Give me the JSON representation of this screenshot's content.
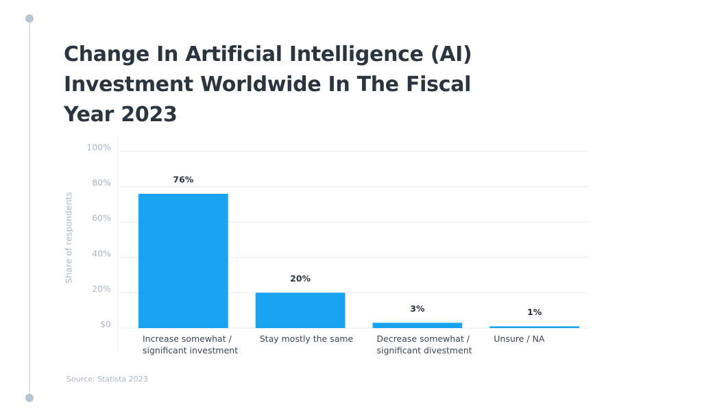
{
  "chart_data": {
    "type": "bar",
    "title": "Change In Artificial Intelligence (AI) Investment Worldwide In The Fiscal Year 2023",
    "y_label": "Share of respondents",
    "source": "Source: Statista 2023",
    "categories": [
      "Increase somewhat / significant investment",
      "Stay mostly the same",
      "Decrease somewhat / significant divestment",
      "Unsure / NA"
    ],
    "values": [
      76,
      20,
      3,
      1
    ],
    "value_labels": [
      "76%",
      "20%",
      "3%",
      "1%"
    ],
    "color": "#1aa3f0",
    "ylim": [
      0,
      100
    ],
    "yticks": [
      {
        "value": 0,
        "label": "$0"
      },
      {
        "value": 20,
        "label": "20%"
      },
      {
        "value": 40,
        "label": "40%"
      },
      {
        "value": 60,
        "label": "60%"
      },
      {
        "value": 80,
        "label": "80%"
      },
      {
        "value": 100,
        "label": "100%"
      }
    ],
    "grid": true
  }
}
